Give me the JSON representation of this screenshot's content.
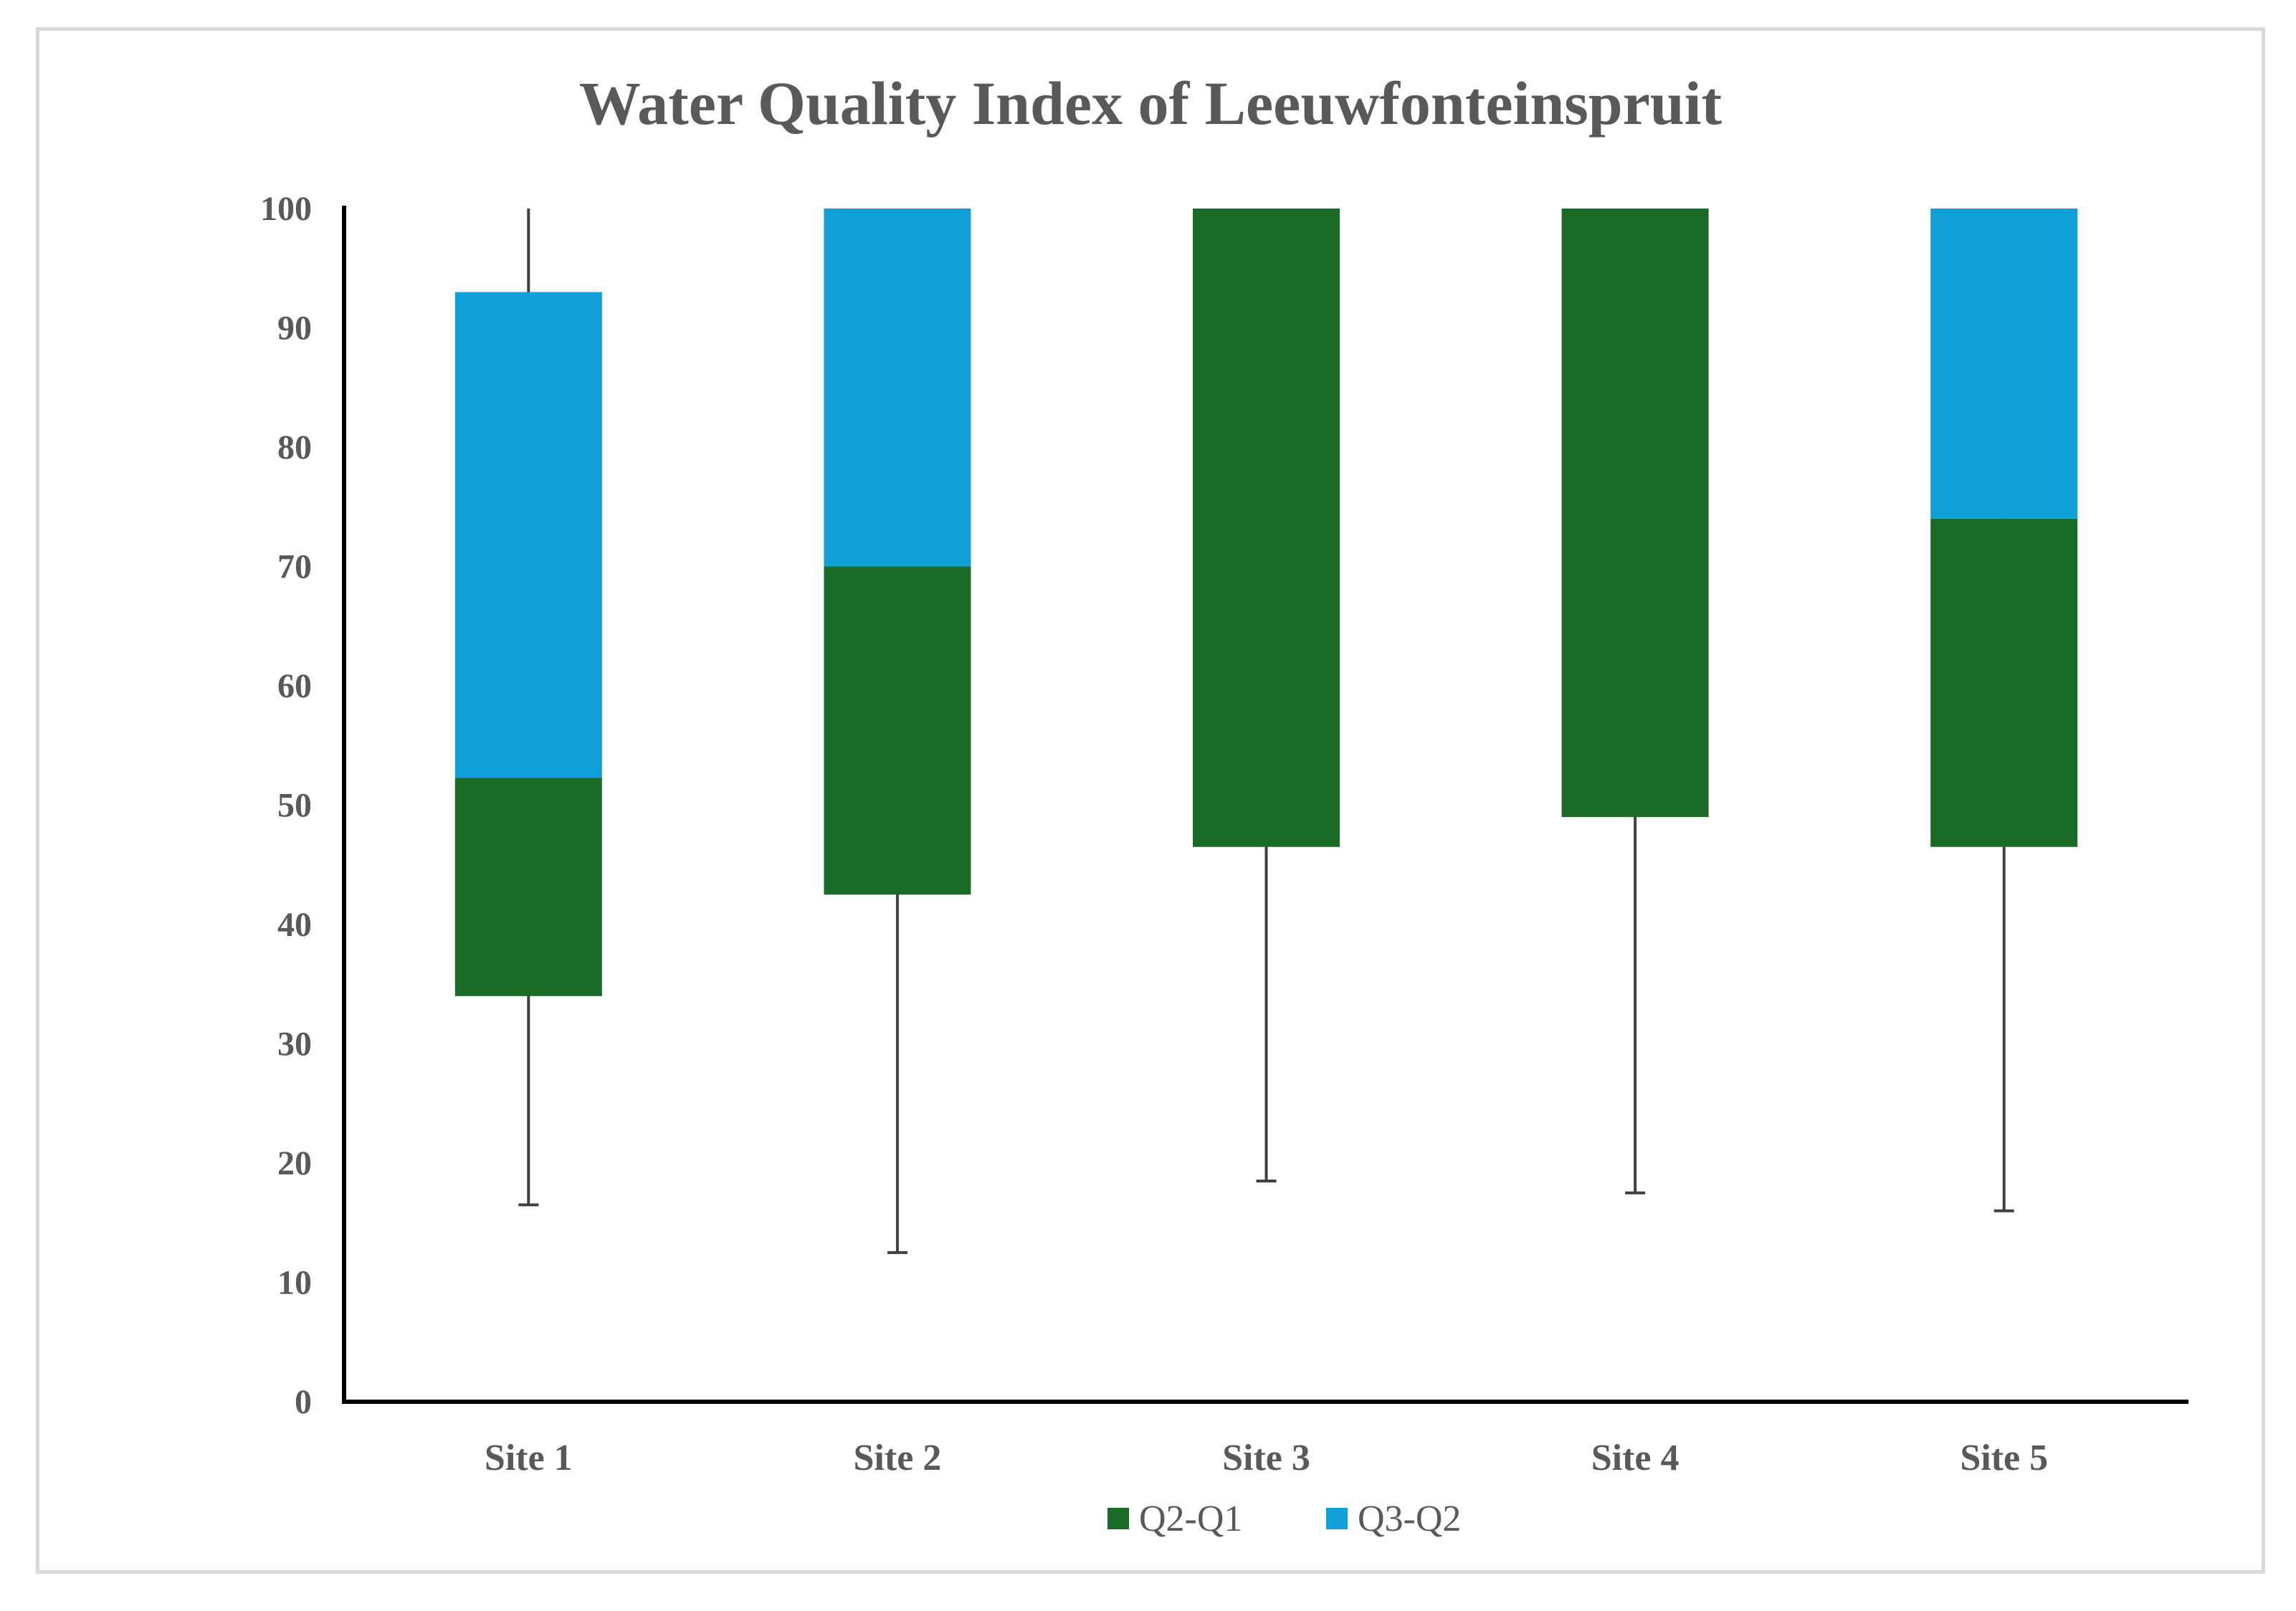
{
  "chart_data": {
    "type": "bar",
    "stacked": true,
    "title": "Water Quality Index of Leeuwfonteinspruit",
    "xlabel": "",
    "ylabel": "",
    "ylim": [
      0,
      100
    ],
    "yticks": [
      0,
      10,
      20,
      30,
      40,
      50,
      60,
      70,
      80,
      90,
      100
    ],
    "grid": false,
    "legend_position": "bottom",
    "categories": [
      "Site 1",
      "Site 2",
      "Site 3",
      "Site 4",
      "Site 5"
    ],
    "q1": [
      34,
      42.5,
      46.5,
      49,
      46.5
    ],
    "whisker_min": [
      16.5,
      12.5,
      18.5,
      17.5,
      16
    ],
    "whisker_max": [
      100,
      100,
      100,
      100,
      100
    ],
    "series": [
      {
        "name": "Q2-Q1",
        "values": [
          18.3,
          27.5,
          53.5,
          51,
          27.5
        ],
        "color": "#1a6b26"
      },
      {
        "name": "Q3-Q2",
        "values": [
          40.7,
          30,
          0,
          0,
          26
        ],
        "color": "#119fd8"
      }
    ],
    "axis_color": "#000000",
    "whisker_color": "#404040",
    "text_color": "#595959"
  }
}
